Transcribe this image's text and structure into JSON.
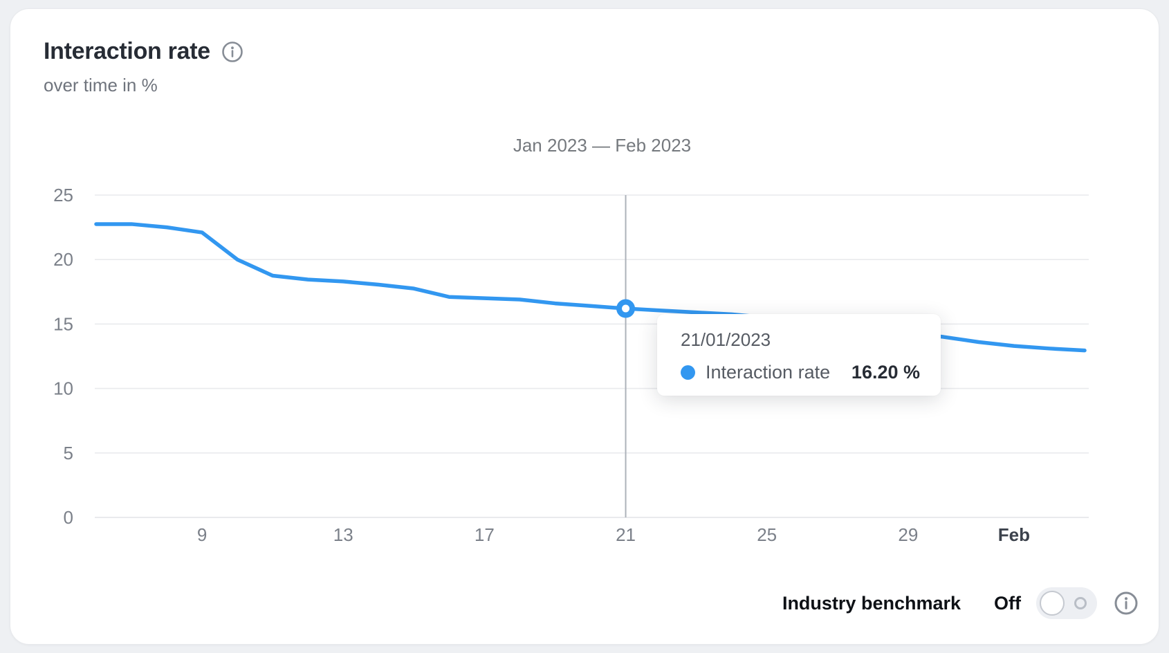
{
  "card": {
    "title": "Interaction rate",
    "subtitle": "over time in %",
    "title_info_icon": "info-icon",
    "accent_color": "#3297f0"
  },
  "chart_data": {
    "type": "line",
    "title": "Jan 2023 — Feb 2023",
    "xlabel": "",
    "ylabel": "Interaction rate over time in %",
    "ylim": [
      0,
      25
    ],
    "yticks": [
      0,
      5,
      10,
      15,
      20,
      25
    ],
    "grid": "horizontal",
    "legend_position": "none",
    "x": [
      "06/01/2023",
      "07/01/2023",
      "08/01/2023",
      "09/01/2023",
      "10/01/2023",
      "11/01/2023",
      "12/01/2023",
      "13/01/2023",
      "14/01/2023",
      "15/01/2023",
      "16/01/2023",
      "17/01/2023",
      "18/01/2023",
      "19/01/2023",
      "20/01/2023",
      "21/01/2023",
      "22/01/2023",
      "23/01/2023",
      "24/01/2023",
      "25/01/2023",
      "26/01/2023",
      "27/01/2023",
      "28/01/2023",
      "29/01/2023",
      "30/01/2023",
      "31/01/2023",
      "01/02/2023",
      "02/02/2023",
      "03/02/2023"
    ],
    "x_ticks": [
      {
        "label": "9",
        "index": 3,
        "bold": false
      },
      {
        "label": "13",
        "index": 7,
        "bold": false
      },
      {
        "label": "17",
        "index": 11,
        "bold": false
      },
      {
        "label": "21",
        "index": 15,
        "bold": false
      },
      {
        "label": "25",
        "index": 19,
        "bold": false
      },
      {
        "label": "29",
        "index": 23,
        "bold": false
      },
      {
        "label": "Feb",
        "index": 26,
        "bold": true
      }
    ],
    "series": [
      {
        "name": "Interaction rate",
        "color": "#3297f0",
        "values": [
          22.75,
          22.75,
          22.5,
          22.1,
          20.0,
          18.75,
          18.45,
          18.3,
          18.05,
          17.75,
          17.1,
          17.0,
          16.9,
          16.6,
          16.4,
          16.2,
          16.05,
          15.9,
          15.75,
          15.5,
          15.2,
          14.9,
          14.6,
          14.3,
          14.0,
          13.6,
          13.3,
          13.1,
          12.95
        ]
      }
    ],
    "highlight": {
      "index": 15,
      "date": "21/01/2023",
      "series_label": "Interaction rate",
      "value": 16.2,
      "value_label": "16.20 %"
    },
    "colors": {
      "line": "#3297f0",
      "gridline": "#e9eaed",
      "axis_line": "#e2e4e7",
      "crosshair": "#adb2ba",
      "tick_text": "#7b8089",
      "tick_text_bold": "#3c424c"
    }
  },
  "benchmark": {
    "label": "Industry benchmark",
    "state_label": "Off",
    "enabled": false
  }
}
